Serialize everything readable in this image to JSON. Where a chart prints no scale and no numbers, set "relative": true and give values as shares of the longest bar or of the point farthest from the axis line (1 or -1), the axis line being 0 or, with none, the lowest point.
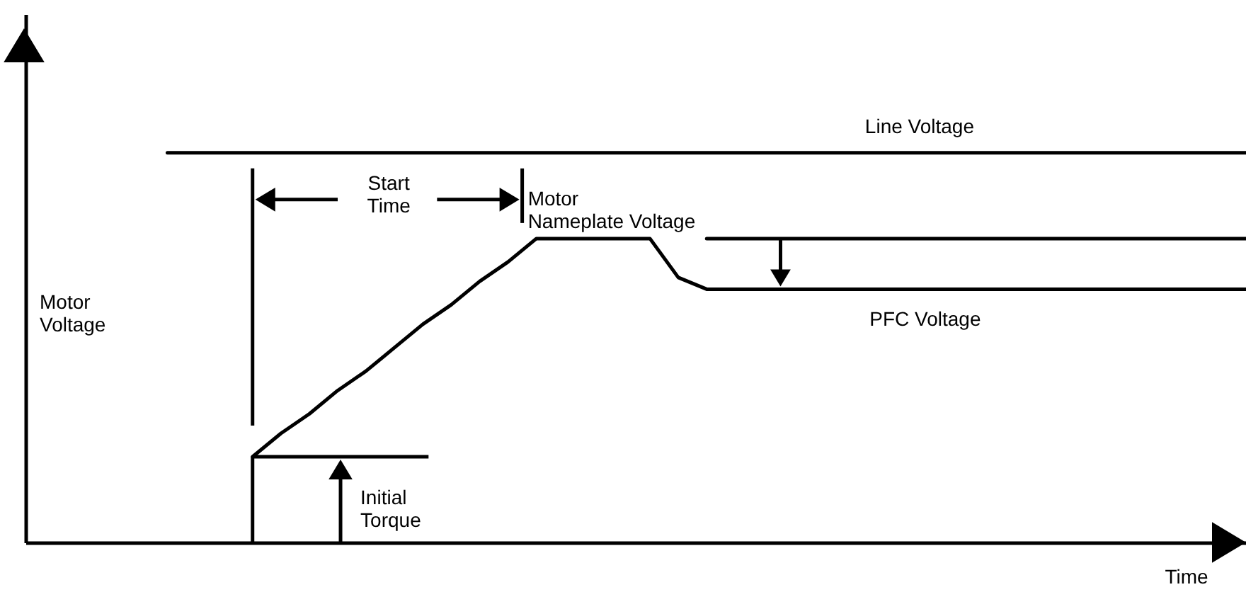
{
  "chart_data": {
    "type": "line",
    "relative": true,
    "xlabel": "Time",
    "ylabel": "Motor Voltage",
    "annotations": [
      "Line Voltage",
      "Start Time",
      "Motor Nameplate Voltage",
      "PFC Voltage",
      "Initial Torque"
    ],
    "categories": [
      null,
      null,
      null,
      null,
      null,
      null,
      null,
      null,
      null,
      null,
      null,
      null,
      null,
      null,
      null,
      null,
      null,
      null,
      null,
      null,
      null,
      null,
      null,
      null,
      null,
      null,
      null,
      null,
      null,
      null,
      null,
      null,
      null,
      null,
      null,
      null,
      null,
      null,
      null,
      null,
      null,
      null,
      null,
      null
    ],
    "series": [
      {
        "color": "#000000",
        "values": [
          null,
          null,
          null,
          null,
          null,
          null,
          null,
          null,
          0.22,
          0.28,
          0.33,
          0.39,
          0.44,
          0.5,
          0.56,
          0.61,
          0.67,
          0.72,
          0.78,
          0.78,
          0.78,
          0.78,
          0.78,
          0.68,
          0.65,
          0.65,
          0.65,
          0.65,
          0.65,
          0.65,
          0.65,
          0.65,
          0.65,
          0.65,
          0.65,
          0.65,
          0.65,
          0.65,
          0.65,
          0.65,
          0.65,
          0.65,
          0.65,
          0.65
        ]
      },
      {
        "color": "#000000",
        "values": [
          null,
          null,
          null,
          null,
          null,
          1,
          1,
          1,
          1,
          1,
          1,
          1,
          1,
          1,
          1,
          1,
          1,
          1,
          1,
          1,
          1,
          1,
          1,
          1,
          1,
          1,
          1,
          1,
          1,
          1,
          1,
          1,
          1,
          1,
          1,
          1,
          1,
          1,
          1,
          1,
          1,
          1,
          1,
          1
        ]
      },
      {
        "color": "#000000",
        "values": [
          null,
          null,
          null,
          null,
          null,
          null,
          null,
          null,
          null,
          null,
          null,
          null,
          null,
          null,
          null,
          null,
          null,
          null,
          null,
          null,
          null,
          null,
          null,
          null,
          0.78,
          0.78,
          0.78,
          0.78,
          0.78,
          0.78,
          0.78,
          0.78,
          0.78,
          0.78,
          0.78,
          0.78,
          0.78,
          0.78,
          0.78,
          0.78,
          0.78,
          0.78,
          0.78,
          0.78
        ]
      }
    ]
  }
}
